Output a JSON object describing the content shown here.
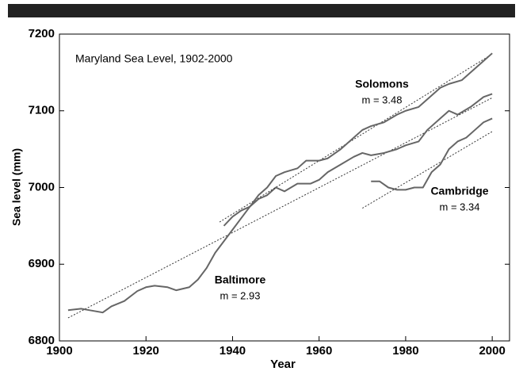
{
  "chart_data": {
    "type": "line",
    "title": "Maryland Sea Level, 1902-2000",
    "x_label": "Year",
    "y_label": "Sea level (mm)",
    "xlim": [
      1900,
      2004
    ],
    "xticks": [
      1900,
      1920,
      1940,
      1960,
      1980,
      2000
    ],
    "ylim": [
      6800,
      7200
    ],
    "yticks": [
      6800,
      6900,
      7000,
      7100,
      7200
    ],
    "series": [
      {
        "name": "Baltimore",
        "slope_label": "m = 2.93",
        "color": "#666666",
        "x": [
          1902,
          1905,
          1907,
          1910,
          1912,
          1915,
          1918,
          1920,
          1922,
          1925,
          1927,
          1930,
          1932,
          1934,
          1936,
          1938,
          1940,
          1942,
          1944,
          1946,
          1948,
          1950,
          1952,
          1955,
          1958,
          1960,
          1962,
          1965,
          1968,
          1970,
          1972,
          1975,
          1978,
          1980,
          1983,
          1985,
          1988,
          1990,
          1992,
          1995,
          1998,
          2000
        ],
        "values": [
          6840,
          6842,
          6840,
          6837,
          6845,
          6852,
          6865,
          6870,
          6872,
          6870,
          6866,
          6870,
          6880,
          6895,
          6915,
          6930,
          6945,
          6960,
          6975,
          6985,
          6990,
          7000,
          6995,
          7005,
          7005,
          7010,
          7020,
          7030,
          7040,
          7045,
          7042,
          7045,
          7050,
          7055,
          7060,
          7075,
          7090,
          7100,
          7095,
          7105,
          7118,
          7122
        ],
        "trend": {
          "x": [
            1902,
            2000
          ],
          "values": [
            6830,
            7117
          ]
        }
      },
      {
        "name": "Solomons",
        "slope_label": "m = 3.48",
        "color": "#666666",
        "x": [
          1938,
          1940,
          1942,
          1944,
          1946,
          1948,
          1950,
          1952,
          1955,
          1957,
          1960,
          1962,
          1965,
          1968,
          1970,
          1972,
          1975,
          1978,
          1980,
          1983,
          1985,
          1988,
          1990,
          1993,
          1995,
          1998,
          2000
        ],
        "values": [
          6950,
          6962,
          6970,
          6975,
          6990,
          7000,
          7015,
          7020,
          7025,
          7035,
          7035,
          7038,
          7050,
          7065,
          7075,
          7080,
          7085,
          7095,
          7100,
          7105,
          7115,
          7130,
          7135,
          7140,
          7150,
          7165,
          7175
        ],
        "trend": {
          "x": [
            1937,
            2000
          ],
          "values": [
            6955,
            7174
          ]
        }
      },
      {
        "name": "Cambridge",
        "slope_label": "m = 3.34",
        "color": "#666666",
        "x": [
          1972,
          1974,
          1976,
          1978,
          1980,
          1982,
          1984,
          1986,
          1988,
          1990,
          1992,
          1994,
          1996,
          1998,
          2000
        ],
        "values": [
          7008,
          7008,
          7000,
          6997,
          6997,
          7000,
          7000,
          7020,
          7030,
          7050,
          7060,
          7065,
          7075,
          7085,
          7090
        ],
        "trend": {
          "x": [
            1970,
            2000
          ],
          "values": [
            6973,
            7073
          ]
        }
      }
    ]
  }
}
